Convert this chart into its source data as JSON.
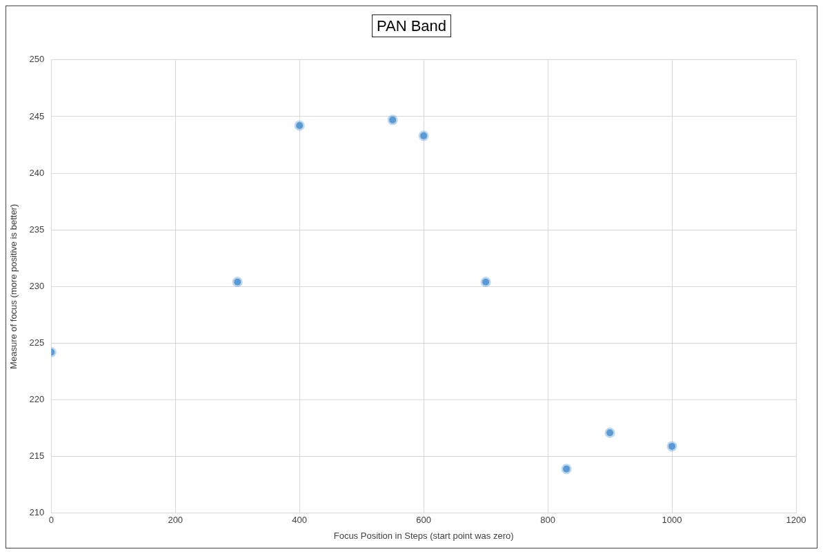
{
  "chart_data": {
    "type": "scatter",
    "title": "PAN Band",
    "xlabel": "Focus Position in Steps (start point was zero)",
    "ylabel": "Measure of focus (more positive is better)",
    "x": [
      0,
      300,
      400,
      550,
      600,
      700,
      830,
      900,
      1000
    ],
    "series": [
      {
        "color": "#5b9bd5",
        "values": [
          224.2,
          230.4,
          244.2,
          244.7,
          243.3,
          230.4,
          213.9,
          217.1,
          215.9
        ]
      }
    ],
    "xlim": [
      0,
      1200
    ],
    "xticks": [
      0,
      200,
      400,
      600,
      800,
      1000,
      1200
    ],
    "ylim": [
      210,
      250
    ],
    "yticks": [
      210,
      215,
      220,
      225,
      230,
      235,
      240,
      245,
      250
    ],
    "grid": true,
    "legend": false,
    "marker": "circle"
  }
}
